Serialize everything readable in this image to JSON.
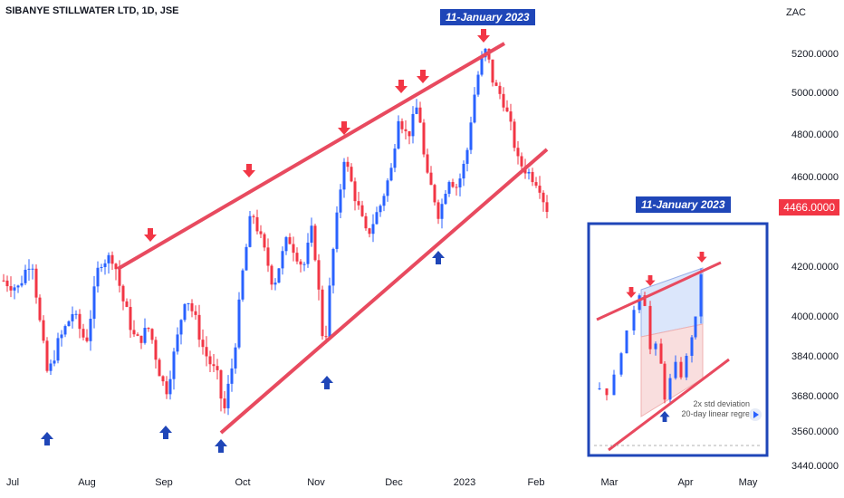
{
  "header": {
    "symbol": "SIBANYE STILLWATER LTD, 1D, JSE"
  },
  "currency": "ZAC",
  "callouts": {
    "main": "11-January 2023",
    "inset": "11-January 2023"
  },
  "price_tag": "4466.0000",
  "inset_note": {
    "line1": "2x std deviation",
    "line2": "20-day linear regre"
  },
  "colors": {
    "up": "#2962ff",
    "down": "#f23645",
    "trend": "#e84a5f",
    "accent": "#1f46b8"
  },
  "chart_data": {
    "type": "candlestick",
    "series_count_hint": "daily OHLC",
    "y_ticks": [
      "5200.0000",
      "5000.0000",
      "4800.0000",
      "4600.0000",
      "4200.0000",
      "4000.0000",
      "3840.0000",
      "3680.0000",
      "3560.0000",
      "3440.0000"
    ],
    "y_tick_values": [
      5200,
      5000,
      4800,
      4600,
      4200,
      4000,
      3840,
      3680,
      3560,
      3440
    ],
    "x_ticks": [
      "Jul",
      "Aug",
      "Sep",
      "Oct",
      "Nov",
      "Dec",
      "2023",
      "Feb",
      "Mar",
      "Apr",
      "May"
    ],
    "last_price": 4466,
    "highlight_date": "11-January 2023",
    "upper_trendline": [
      {
        "x": "Aug",
        "y": 4220
      },
      {
        "x": "11-January 2023",
        "y": 5230
      }
    ],
    "lower_trendline": [
      {
        "x": "Sep",
        "y": 3590
      },
      {
        "x": "Feb",
        "y": 4680
      }
    ]
  }
}
